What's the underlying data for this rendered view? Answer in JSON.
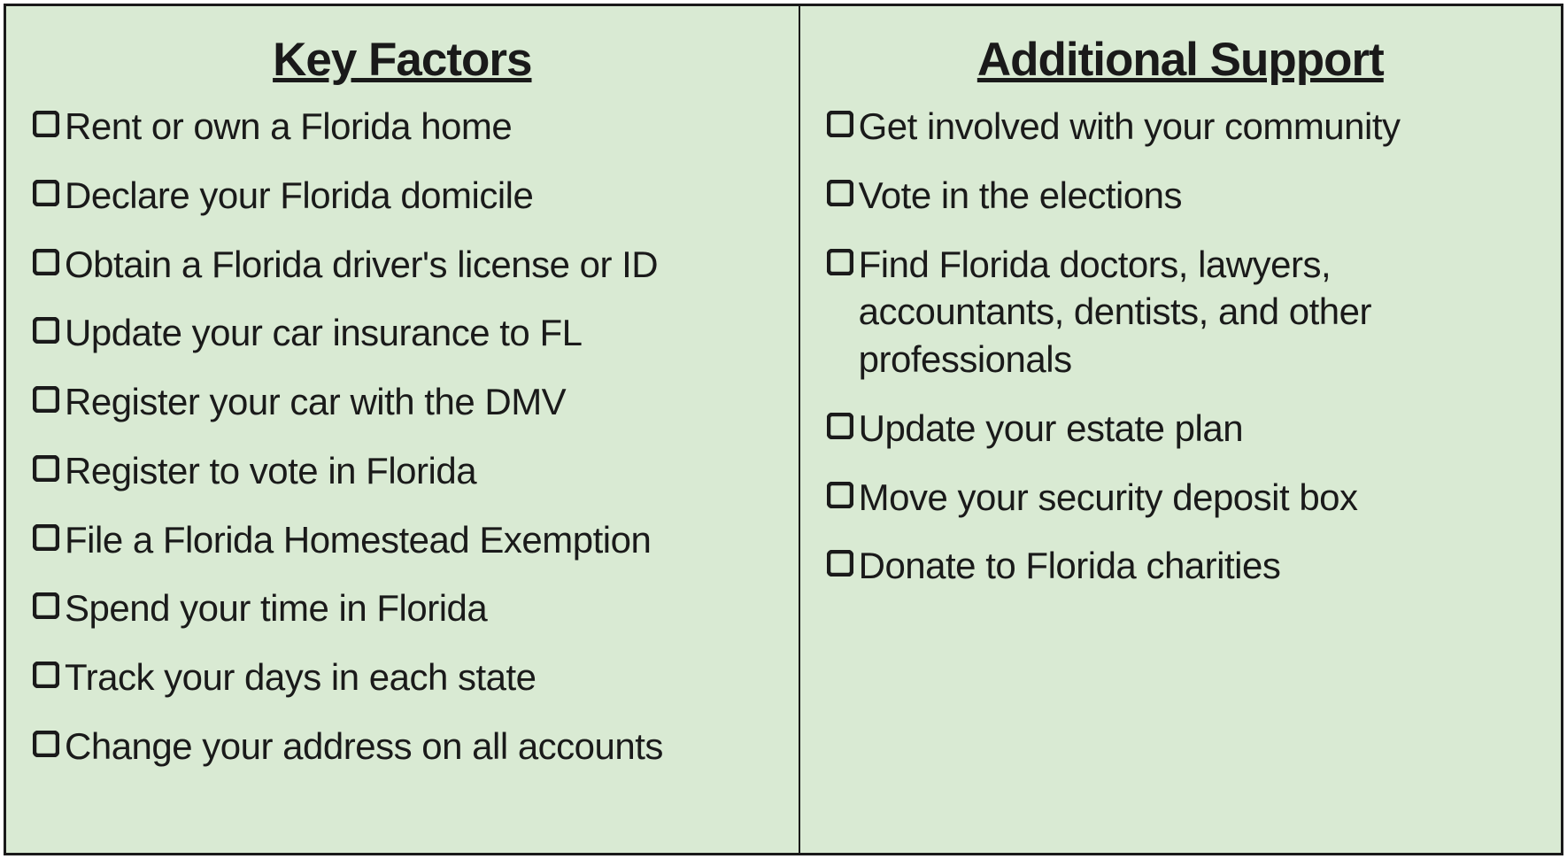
{
  "background_color": "#d9ead3",
  "border_color": "#1a1a1a",
  "text_color": "#1a1a1a",
  "heading_fontsize": 53,
  "item_fontsize": 42,
  "columns": [
    {
      "heading": "Key Factors",
      "items": [
        "Rent or own a Florida home",
        "Declare your Florida domicile",
        "Obtain a Florida driver's license or ID",
        "Update your car insurance to FL",
        "Register your car with the DMV",
        "Register to vote in Florida",
        "File a Florida Homestead Exemption",
        "Spend your time in Florida",
        "Track your days in each state",
        "Change your address on all accounts"
      ]
    },
    {
      "heading": "Additional Support",
      "items": [
        "Get involved with your community",
        "Vote in the elections",
        "Find Florida doctors, lawyers, accountants, dentists, and other professionals",
        "Update your estate plan",
        "Move your security deposit box",
        "Donate to Florida charities"
      ]
    }
  ]
}
